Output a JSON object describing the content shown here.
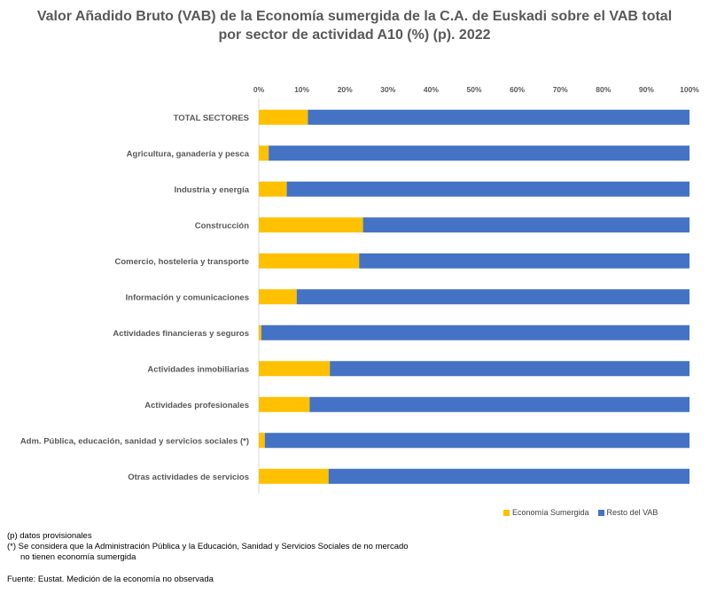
{
  "title_line1": "Valor Añadido Bruto (VAB) de la Economía sumergida de la C.A. de Euskadi sobre el VAB total",
  "title_line2": "por sector de actividad A10 (%) (p). 2022",
  "legend": [
    {
      "label": "Economía Sumergida",
      "color": "#FFC000"
    },
    {
      "label": "Resto del VAB",
      "color": "#4472C4"
    }
  ],
  "notes": {
    "line1": "(p) datos provisionales",
    "line2": "(*) Se considera que la Administración Pública y la Educación, Sanidad y Servicios Sociales de no mercado",
    "line3": "no tienen economía sumergida"
  },
  "source": "Fuente: Eustat. Medición de la economía no observada",
  "chart_data": {
    "type": "bar",
    "orientation": "horizontal",
    "stacked": "percent",
    "xlim": [
      0,
      100
    ],
    "x_ticks": [
      "0%",
      "10%",
      "20%",
      "30%",
      "40%",
      "50%",
      "60%",
      "70%",
      "80%",
      "90%",
      "100%"
    ],
    "x_axis_position": "top",
    "legend_position": "bottom-right",
    "categories": [
      "TOTAL SECTORES",
      "Agricultura, ganadería y pesca",
      "Industria y energía",
      "Construcción",
      "Comercio, hosteleria y transporte",
      "Información y comunicaciones",
      "Actividades financieras y seguros",
      "Actividades inmobiliarias",
      "Actividades profesionales",
      "Adm. Pública, educación, sanidad y servicios sociales (*)",
      "Otras actividades de servicios"
    ],
    "series": [
      {
        "name": "Economía Sumergida",
        "color": "#FFC000",
        "values": [
          11.4,
          2.3,
          6.5,
          24.2,
          23.3,
          8.8,
          0.6,
          16.5,
          11.8,
          1.4,
          16.2
        ]
      },
      {
        "name": "Resto del VAB",
        "color": "#4472C4",
        "values": [
          88.6,
          97.7,
          93.5,
          75.8,
          76.7,
          91.2,
          99.4,
          83.5,
          88.2,
          98.6,
          83.8
        ]
      }
    ]
  }
}
